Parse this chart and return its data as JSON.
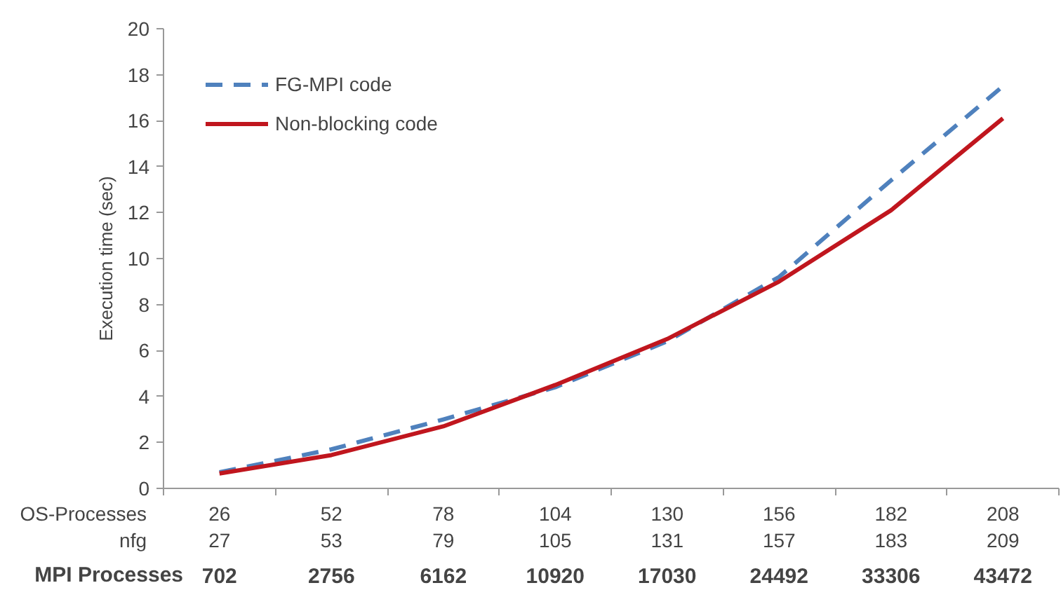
{
  "chart_data": {
    "type": "line",
    "ylabel": "Execution time (sec)",
    "categories": [
      "26",
      "52",
      "78",
      "104",
      "130",
      "156",
      "182",
      "208"
    ],
    "series": [
      {
        "name": "FG-MPI code",
        "color": "#4f81bd",
        "line_style": "dashed",
        "values": [
          0.7,
          1.7,
          3.0,
          4.4,
          6.4,
          9.2,
          13.4,
          17.5
        ]
      },
      {
        "name": "Non-blocking code",
        "color": "#c0161e",
        "line_style": "solid",
        "values": [
          0.65,
          1.45,
          2.7,
          4.5,
          6.5,
          9.0,
          12.1,
          16.1
        ]
      }
    ],
    "ylim": [
      0,
      20
    ],
    "yticks": [
      0,
      2,
      4,
      6,
      8,
      10,
      12,
      14,
      16,
      18,
      20
    ],
    "annotations": [
      "OS-Processes",
      "nfg",
      "27",
      "53",
      "79",
      "105",
      "131",
      "157",
      "183",
      "209",
      "MPI Processes",
      "702",
      "2756",
      "6162",
      "10920",
      "17030",
      "24492",
      "33306",
      "43472"
    ],
    "grid": false,
    "legend": "top left",
    "marker": "none"
  }
}
